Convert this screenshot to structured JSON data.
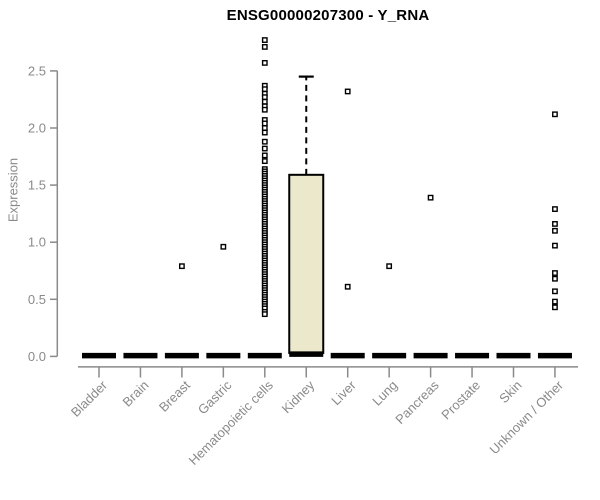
{
  "chart_data": {
    "type": "box",
    "title": "ENSG00000207300 - Y_RNA",
    "xlabel": "",
    "ylabel": "Expression",
    "y_axis": {
      "label": "Expression",
      "tick_labels": [
        "0.0",
        "0.5",
        "1.0",
        "1.5",
        "2.0",
        "2.5"
      ],
      "tick_values": [
        0.0,
        0.5,
        1.0,
        1.5,
        2.0,
        2.5
      ],
      "range": [
        0.0,
        2.5
      ]
    },
    "legend": null,
    "grid": false,
    "style_notes": "white background, R base-graphics style, gray axes, dashed whisker, outliers drawn as small open squares",
    "categories": [
      {
        "label": "Bladder",
        "zero_bar": true,
        "points": []
      },
      {
        "label": "Brain",
        "zero_bar": true,
        "points": []
      },
      {
        "label": "Breast",
        "zero_bar": true,
        "points": [
          0.79
        ]
      },
      {
        "label": "Gastric",
        "zero_bar": true,
        "points": [
          0.96
        ]
      },
      {
        "label": "Hematopoietic cells",
        "zero_bar": true,
        "points": [
          2.77,
          2.71,
          2.57,
          2.37,
          2.34,
          2.3,
          2.27,
          2.23,
          2.19,
          2.16,
          2.07,
          2.04,
          2.0,
          1.96,
          1.88,
          1.82,
          1.76,
          1.71,
          1.64,
          1.62,
          1.6,
          1.58,
          1.56,
          1.54,
          1.52,
          1.5,
          1.48,
          1.46,
          1.44,
          1.42,
          1.4,
          1.38,
          1.36,
          1.34,
          1.32,
          1.3,
          1.28,
          1.26,
          1.24,
          1.22,
          1.2,
          1.18,
          1.16,
          1.14,
          1.12,
          1.1,
          1.08,
          1.06,
          1.04,
          1.02,
          1.0,
          0.98,
          0.96,
          0.94,
          0.92,
          0.9,
          0.88,
          0.86,
          0.84,
          0.82,
          0.8,
          0.78,
          0.76,
          0.74,
          0.72,
          0.7,
          0.68,
          0.66,
          0.64,
          0.62,
          0.6,
          0.58,
          0.56,
          0.54,
          0.52,
          0.5,
          0.48,
          0.46,
          0.44,
          0.42,
          0.39,
          0.37
        ]
      },
      {
        "label": "Kidney",
        "zero_bar": false,
        "points": [],
        "box": {
          "q1": 0.03,
          "median": 0.02,
          "q3": 1.59,
          "whisker_low": 0.03,
          "whisker_high": 2.45
        }
      },
      {
        "label": "Liver",
        "zero_bar": true,
        "points": [
          2.32,
          0.61
        ]
      },
      {
        "label": "Lung",
        "zero_bar": true,
        "points": [
          0.79
        ]
      },
      {
        "label": "Pancreas",
        "zero_bar": true,
        "points": [
          1.39
        ]
      },
      {
        "label": "Prostate",
        "zero_bar": true,
        "points": []
      },
      {
        "label": "Skin",
        "zero_bar": true,
        "points": []
      },
      {
        "label": "Unknown / Other",
        "zero_bar": true,
        "points": [
          2.12,
          1.29,
          1.16,
          1.1,
          0.97,
          0.73,
          0.68,
          0.57,
          0.48,
          0.43
        ]
      }
    ],
    "colors": {
      "box_fill": "#ece8cb",
      "box_stroke": "#000000",
      "zero_bar": "#000000",
      "point_stroke": "#000000",
      "point_fill": "#ffffff",
      "axis": "#8a8a8a",
      "tick_text": "#8a8a8a",
      "title_text": "#000000",
      "background": "#ffffff"
    }
  }
}
